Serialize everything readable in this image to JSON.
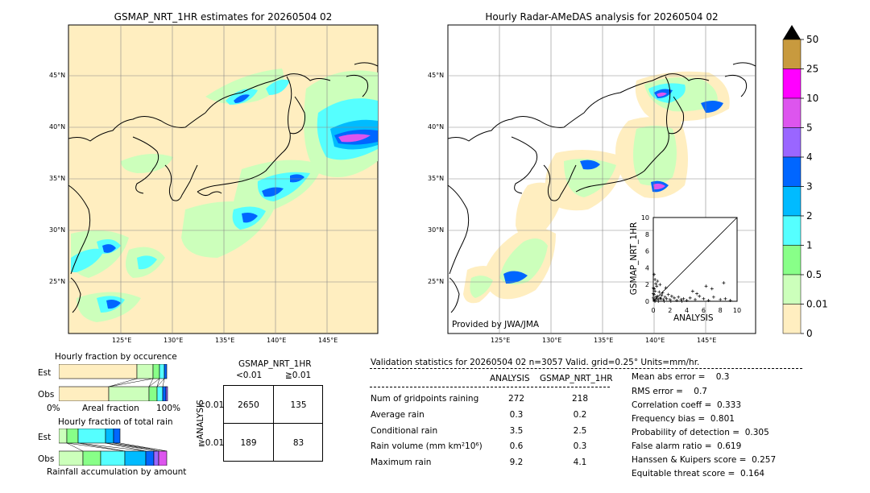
{
  "maps": {
    "left": {
      "title": "GSMAP_NRT_1HR estimates for 20260504 02"
    },
    "right": {
      "title": "Hourly Radar-AMeDAS analysis for 20260504 02",
      "credit": "Provided by JWA/JMA"
    },
    "lat_labels": [
      "45°N",
      "40°N",
      "35°N",
      "30°N",
      "25°N"
    ],
    "lon_labels": [
      "125°E",
      "130°E",
      "135°E",
      "140°E",
      "145°E"
    ]
  },
  "colorbar": {
    "labels": [
      "50",
      "25",
      "10",
      "5",
      "4",
      "3",
      "2",
      "1",
      "0.5",
      "0.01",
      "0"
    ],
    "colors": [
      "#c89a3e",
      "#ff00ff",
      "#dd55ee",
      "#9a66ff",
      "#0066ff",
      "#00bbff",
      "#55ffff",
      "#88ff88",
      "#ccffbb",
      "#ffeec0"
    ]
  },
  "scatter": {
    "xlabel": "ANALYSIS",
    "ylabel": "GSMAP_NRT_1HR",
    "ticks": [
      "0",
      "2",
      "4",
      "6",
      "8",
      "10"
    ],
    "corner_label": "10"
  },
  "occurrence": {
    "title": "Hourly fraction by occurence",
    "rows": [
      "Est",
      "Obs"
    ],
    "axis_left": "0%",
    "axis_mid": "Areal fraction",
    "axis_right": "100%"
  },
  "total_rain": {
    "title": "Hourly fraction of total rain",
    "rows": [
      "Est",
      "Obs"
    ],
    "footer": "Rainfall accumulation by amount"
  },
  "contingency": {
    "title": "GSMAP_NRT_1HR",
    "col_labels": [
      "<0.01",
      "≧0.01"
    ],
    "row_axis": "ANALYSIS",
    "row_labels": [
      "<0.01",
      "≧0.01"
    ],
    "cells": [
      [
        "2650",
        "135"
      ],
      [
        "189",
        "83"
      ]
    ]
  },
  "validation": {
    "header": "Validation statistics for 20260504 02  n=3057 Valid. grid=0.25° Units=mm/hr.",
    "col_analysis": "ANALYSIS",
    "col_gsmap": "GSMAP_NRT_1HR",
    "rows": [
      {
        "label": "Num of gridpoints raining",
        "analysis": "272",
        "gsmap": "218"
      },
      {
        "label": "Average rain",
        "analysis": "0.3",
        "gsmap": "0.2"
      },
      {
        "label": "Conditional rain",
        "analysis": "3.5",
        "gsmap": "2.5"
      },
      {
        "label": "Rain volume (mm km²10⁶)",
        "analysis": "0.6",
        "gsmap": "0.3"
      },
      {
        "label": "Maximum rain",
        "analysis": "9.2",
        "gsmap": "4.1"
      }
    ],
    "scores": [
      "Mean abs error =    0.3",
      "RMS error =    0.7",
      "Correlation coeff =  0.333",
      "Frequency bias =  0.801",
      "Probability of detection =  0.305",
      "False alarm ratio =  0.619",
      "Hanssen & Kuipers score =  0.257",
      "Equitable threat score =  0.164"
    ]
  },
  "chart_data": {
    "type": "scatter",
    "xlabel": "ANALYSIS",
    "ylabel": "GSMAP_NRT_1HR",
    "xlim": [
      0,
      10
    ],
    "ylim": [
      0,
      10
    ],
    "points": [
      [
        0.1,
        0.2
      ],
      [
        0.2,
        0.1
      ],
      [
        0.3,
        0.5
      ],
      [
        0.1,
        0.8
      ],
      [
        0.4,
        0.3
      ],
      [
        0.2,
        1.2
      ],
      [
        0.5,
        0.6
      ],
      [
        0.1,
        1.5
      ],
      [
        0.3,
        2.1
      ],
      [
        0.2,
        2.6
      ],
      [
        0.1,
        3.2
      ],
      [
        0.4,
        1.8
      ],
      [
        0.6,
        0.2
      ],
      [
        0.8,
        0.4
      ],
      [
        0.7,
        1.1
      ],
      [
        0.9,
        0.3
      ],
      [
        1.0,
        0.7
      ],
      [
        1.2,
        0.2
      ],
      [
        1.1,
        1.0
      ],
      [
        1.4,
        0.5
      ],
      [
        1.6,
        0.3
      ],
      [
        1.8,
        0.8
      ],
      [
        2.0,
        0.2
      ],
      [
        2.2,
        0.6
      ],
      [
        2.5,
        0.4
      ],
      [
        2.8,
        0.1
      ],
      [
        3.0,
        0.5
      ],
      [
        3.3,
        0.2
      ],
      [
        3.6,
        0.3
      ],
      [
        4.0,
        0.1
      ],
      [
        4.4,
        0.4
      ],
      [
        5.0,
        0.2
      ],
      [
        5.5,
        0.6
      ],
      [
        6.0,
        0.3
      ],
      [
        6.6,
        0.1
      ],
      [
        7.2,
        0.5
      ],
      [
        8.0,
        0.2
      ],
      [
        8.6,
        0.3
      ],
      [
        9.2,
        0.1
      ],
      [
        0.5,
        2.4
      ],
      [
        0.2,
        0.0
      ],
      [
        0.6,
        0.0
      ],
      [
        1.3,
        0.0
      ],
      [
        2.1,
        0.0
      ],
      [
        3.4,
        0.0
      ],
      [
        0.0,
        0.4
      ],
      [
        0.0,
        1.6
      ],
      [
        0.0,
        0.9
      ],
      [
        6.3,
        1.8
      ],
      [
        7.0,
        1.5
      ],
      [
        8.4,
        2.2
      ],
      [
        4.7,
        1.2
      ],
      [
        5.2,
        0.9
      ],
      [
        1.5,
        1.6
      ],
      [
        0.8,
        2.0
      ]
    ]
  }
}
